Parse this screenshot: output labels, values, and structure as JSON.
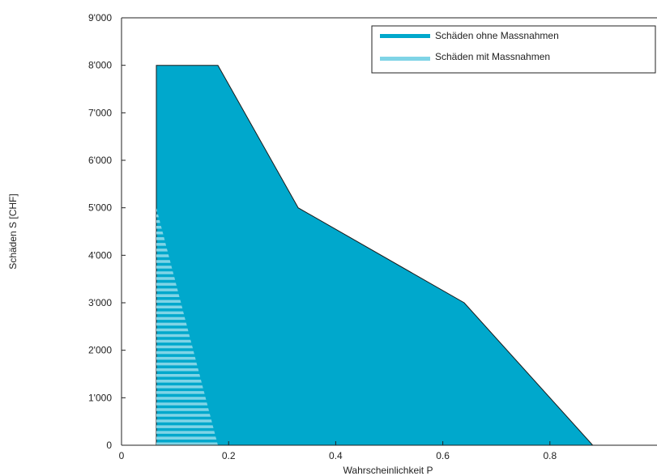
{
  "chart_data": {
    "type": "area",
    "xlabel": "Wahrscheinlichkeit P",
    "ylabel": "Schäden S [CHF]",
    "xlim": [
      0,
      1
    ],
    "ylim": [
      0,
      9000
    ],
    "x_ticks": [
      0,
      0.2,
      0.4,
      0.6,
      0.8
    ],
    "x_tick_labels": [
      "0",
      "0.2",
      "0.4",
      "0.6",
      "0.8"
    ],
    "y_ticks": [
      0,
      1000,
      2000,
      3000,
      4000,
      5000,
      6000,
      7000,
      8000,
      9000
    ],
    "y_tick_labels": [
      "0",
      "1'000",
      "2'000",
      "3'000",
      "4'000",
      "5'000",
      "6'000",
      "7'000",
      "8'000",
      "9'000"
    ],
    "grid": false,
    "legend_position": "top-right",
    "series": [
      {
        "name": "Schäden ohne Massnahmen",
        "color": "#00a8cc",
        "fill": "solid",
        "points": [
          [
            0.065,
            0
          ],
          [
            0.065,
            8000
          ],
          [
            0.18,
            8000
          ],
          [
            0.33,
            5000
          ],
          [
            0.64,
            3000
          ],
          [
            0.88,
            0
          ]
        ]
      },
      {
        "name": "Schäden mit Massnahmen",
        "color": "#7fd4e6",
        "fill": "horizontal-stripes",
        "points": [
          [
            0.065,
            0
          ],
          [
            0.065,
            5000
          ],
          [
            0.18,
            0
          ]
        ]
      }
    ]
  }
}
